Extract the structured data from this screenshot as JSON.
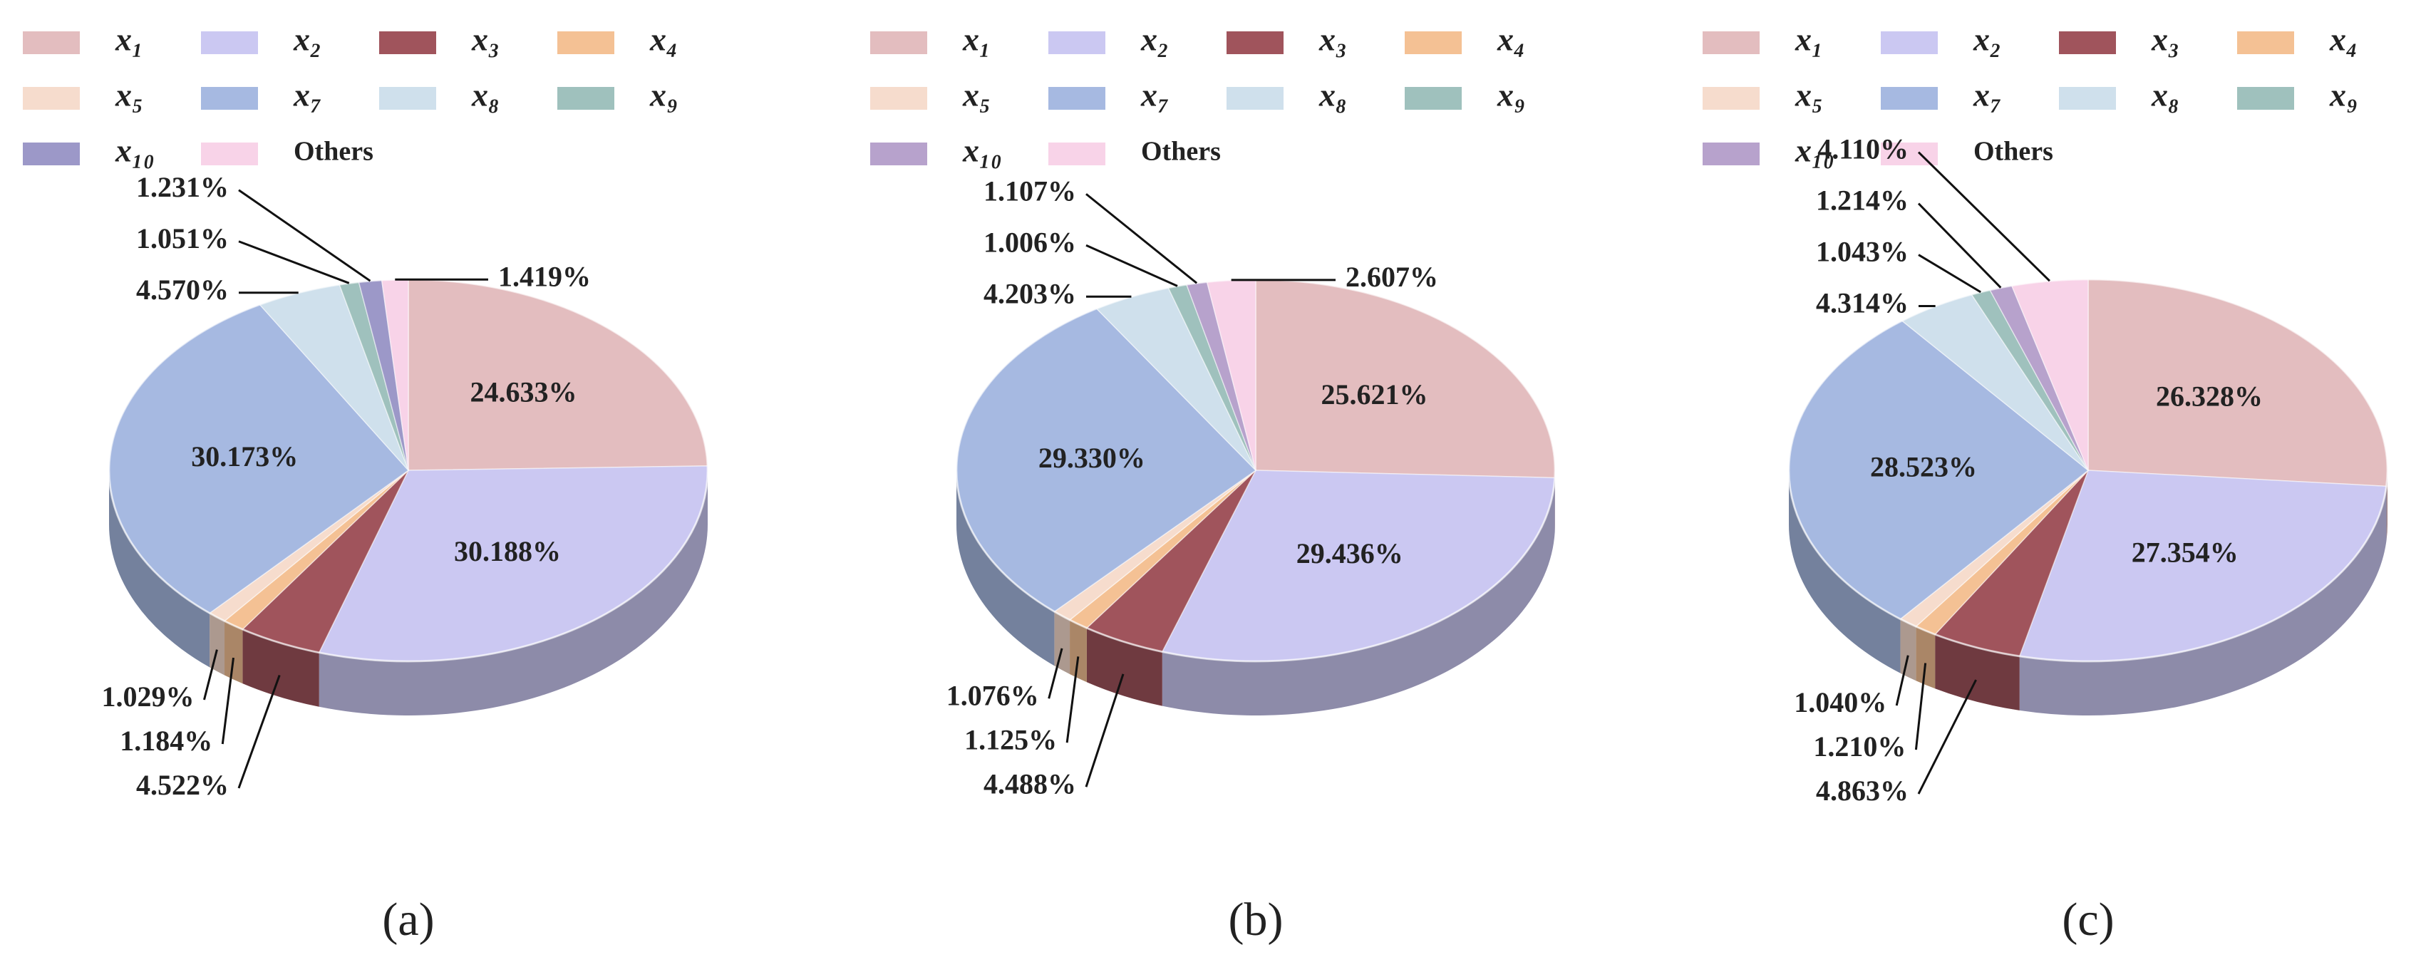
{
  "chart_data": [
    {
      "type": "pie",
      "caption": "(a)",
      "categories": [
        "x₁",
        "x₂",
        "x₃",
        "x₄",
        "x₅",
        "x₇",
        "x₈",
        "x₉",
        "x₁₀",
        "Others"
      ],
      "values": [
        24.633,
        30.188,
        4.522,
        1.184,
        1.029,
        30.173,
        4.57,
        1.051,
        1.231,
        1.419
      ],
      "value_labels": [
        "24.633%",
        "30.188%",
        "4.522%",
        "1.184%",
        "1.029%",
        "30.173%",
        "4.570%",
        "1.051%",
        "1.231%",
        "1.419%"
      ],
      "colors": [
        "#e3bdbf",
        "#cbc8f2",
        "#a0545c",
        "#f4c194",
        "#f6dccd",
        "#a6b9e1",
        "#cfe0ec",
        "#9fc1bd",
        "#9c98c8",
        "#f8d3e8"
      ]
    },
    {
      "type": "pie",
      "caption": "(b)",
      "categories": [
        "x₁",
        "x₂",
        "x₃",
        "x₄",
        "x₅",
        "x₇",
        "x₈",
        "x₉",
        "x₁₀",
        "Others"
      ],
      "values": [
        25.621,
        29.436,
        4.488,
        1.125,
        1.076,
        29.33,
        4.203,
        1.006,
        1.107,
        2.607
      ],
      "value_labels": [
        "25.621%",
        "29.436%",
        "4.488%",
        "1.125%",
        "1.076%",
        "29.330%",
        "4.203%",
        "1.006%",
        "1.107%",
        "2.607%"
      ],
      "colors": [
        "#e3bdbf",
        "#cbc8f2",
        "#a0545c",
        "#f4c194",
        "#f6dccd",
        "#a6b9e1",
        "#cfe0ec",
        "#9fc1bd",
        "#b7a2cc",
        "#f8d3e8"
      ]
    },
    {
      "type": "pie",
      "caption": "(c)",
      "categories": [
        "x₁",
        "x₂",
        "x₃",
        "x₄",
        "x₅",
        "x₇",
        "x₈",
        "x₉",
        "x₁₀",
        "Others"
      ],
      "values": [
        26.328,
        27.354,
        4.863,
        1.21,
        1.04,
        28.523,
        4.314,
        1.043,
        1.214,
        4.11
      ],
      "value_labels": [
        "26.328%",
        "27.354%",
        "4.863%",
        "1.210%",
        "1.040%",
        "28.523%",
        "4.314%",
        "1.043%",
        "1.214%",
        "4.110%"
      ],
      "colors": [
        "#e3bdbf",
        "#cbc8f2",
        "#a0545c",
        "#f4c194",
        "#f6dccd",
        "#a6b9e1",
        "#cfe0ec",
        "#9fc1bd",
        "#b7a2cc",
        "#f8d3e8"
      ]
    }
  ]
}
